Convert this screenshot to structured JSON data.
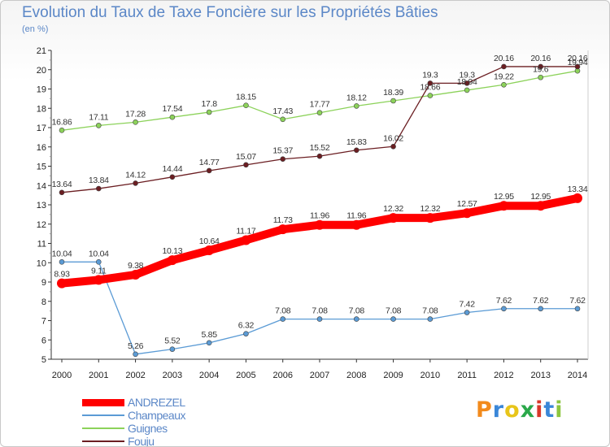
{
  "header": {
    "title": "Evolution du Taux de Taxe Foncière sur les Propriétés Bâties",
    "unit": "(en %)"
  },
  "logo": {
    "letters": [
      "P",
      "r",
      "o",
      "x",
      "i",
      "t",
      "i"
    ],
    "colors": [
      "#f28a1c",
      "#3a87d8",
      "#e8c51a",
      "#2aa84a",
      "#d8382a",
      "#3a87d8",
      "#8cc63f"
    ]
  },
  "chart_data": {
    "type": "line",
    "title": "Evolution du Taux de Taxe Foncière sur les Propriétés Bâties",
    "ylabel": "(en %)",
    "xlabel": "",
    "x": [
      "2000",
      "2001",
      "2002",
      "2003",
      "2004",
      "2005",
      "2006",
      "2007",
      "2008",
      "2009",
      "2010",
      "2011",
      "2012",
      "2013",
      "2014"
    ],
    "ylim": [
      5,
      21
    ],
    "yticks": [
      "5",
      "6",
      "7",
      "8",
      "9",
      "10",
      "11",
      "12",
      "13",
      "14",
      "15",
      "16",
      "17",
      "18",
      "19",
      "20",
      "21"
    ],
    "grid": false,
    "legend_position": "bottom-left",
    "series": [
      {
        "name": "ANDREZEL",
        "color": "#ff0000",
        "values": [
          8.93,
          9.11,
          9.38,
          10.13,
          10.64,
          11.17,
          11.73,
          11.96,
          11.96,
          12.32,
          12.32,
          12.57,
          12.95,
          12.95,
          13.34
        ],
        "labels": [
          "8.93",
          "9.11",
          "9.38",
          "10.13",
          "10.64",
          "11.17",
          "11.73",
          "11.96",
          "11.96",
          "12.32",
          "12.32",
          "12.57",
          "12.95",
          "12.95",
          "13.34"
        ]
      },
      {
        "name": "Champeaux",
        "color": "#5b9bd5",
        "values": [
          10.04,
          10.04,
          5.26,
          5.52,
          5.85,
          6.32,
          7.08,
          7.08,
          7.08,
          7.08,
          7.08,
          7.42,
          7.62,
          7.62,
          7.62
        ],
        "labels": [
          "10.04",
          "10.04",
          "5.26",
          "5.52",
          "5.85",
          "6.32",
          "7.08",
          "7.08",
          "7.08",
          "7.08",
          "7.08",
          "7.42",
          "7.62",
          "7.62",
          "7.62"
        ]
      },
      {
        "name": "Guignes",
        "color": "#8cd25a",
        "values": [
          16.86,
          17.11,
          17.28,
          17.54,
          17.8,
          18.15,
          17.43,
          17.77,
          18.12,
          18.39,
          18.66,
          18.94,
          19.22,
          19.6,
          19.94
        ],
        "labels": [
          "16.86",
          "17.11",
          "17.28",
          "17.54",
          "17.8",
          "18.15",
          "17.43",
          "17.77",
          "18.12",
          "18.39",
          "18.66",
          "18.94",
          "19.22",
          "19.6",
          "19.94"
        ]
      },
      {
        "name": "Fouju",
        "color": "#6b1e22",
        "values": [
          13.64,
          13.84,
          14.12,
          14.44,
          14.77,
          15.07,
          15.37,
          15.52,
          15.83,
          16.02,
          19.3,
          19.3,
          20.16,
          20.16,
          20.16
        ],
        "labels": [
          "13.64",
          "13.84",
          "14.12",
          "14.44",
          "14.77",
          "15.07",
          "15.37",
          "15.52",
          "15.83",
          "16.02",
          "19.3",
          "19.3",
          "20.16",
          "20.16",
          "20.16"
        ]
      }
    ]
  }
}
